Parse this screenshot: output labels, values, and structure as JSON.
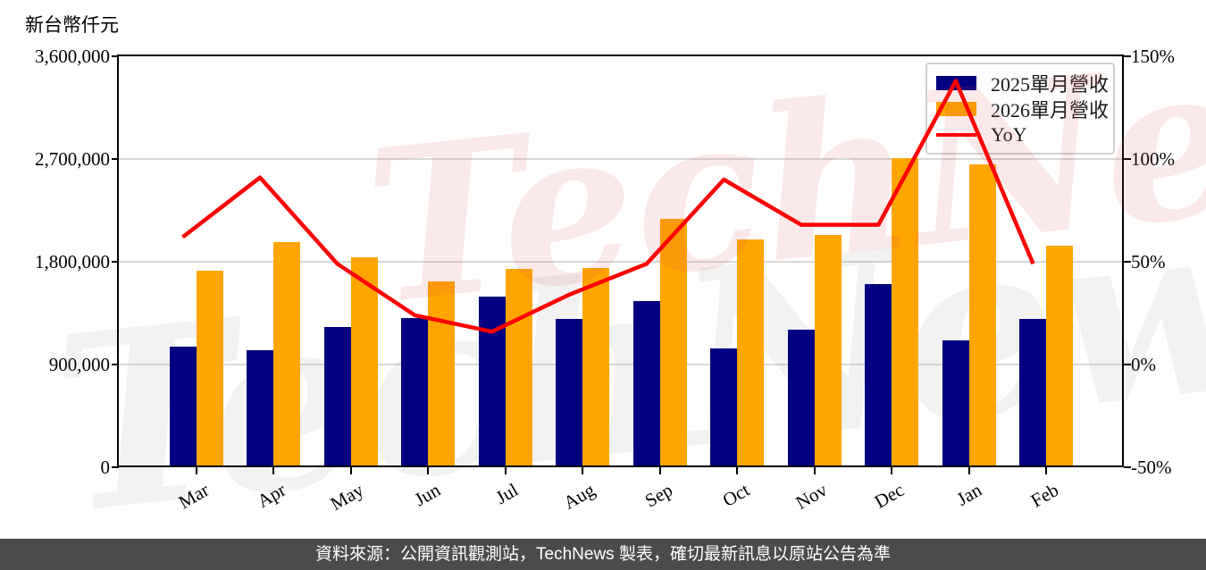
{
  "axis_title": "新台幣仟元",
  "watermark": {
    "text": "TechNews"
  },
  "legend": [
    {
      "label": "2025單月營收",
      "color": "#000080",
      "type": "box"
    },
    {
      "label": "2026單月營收",
      "color": "#FFA500",
      "type": "box"
    },
    {
      "label": "YoY",
      "color": "#FF0000",
      "type": "line"
    }
  ],
  "footer": {
    "text": "資料來源：公開資訊觀測站，TechNews 製表，確切最新訊息以原站公告為準"
  },
  "colors": {
    "bar_2025": "#000080",
    "bar_2026": "#FFA500",
    "yoy_line": "#FF0000",
    "gridline": "#d8d8d8",
    "axis": "#000000",
    "footer_bg": "#4b4b4b",
    "footer_text": "#ffffff",
    "watermark_pink": "rgba(225,75,75,0.13)",
    "watermark_gray": "rgba(125,125,125,0.10)"
  },
  "chart_data": {
    "type": "bar",
    "subtype": "grouped bars with line overlay (dual axis)",
    "categories": [
      "Mar",
      "Apr",
      "May",
      "Jun",
      "Jul",
      "Aug",
      "Sep",
      "Oct",
      "Nov",
      "Dec",
      "Jan",
      "Feb"
    ],
    "series": [
      {
        "name": "2025單月營收",
        "type": "bar",
        "axis": "left",
        "color": "#000080",
        "values": [
          1054000,
          1028000,
          1229000,
          1309000,
          1497000,
          1302000,
          1458000,
          1041000,
          1203000,
          1607000,
          1111000,
          1302000
        ]
      },
      {
        "name": "2026單月營收",
        "type": "bar",
        "axis": "left",
        "color": "#FFA500",
        "values": [
          1724000,
          1972000,
          1837000,
          1628000,
          1740000,
          1745000,
          2176000,
          1996000,
          2037000,
          2706000,
          2651000,
          1941000
        ]
      },
      {
        "name": "YoY",
        "type": "line",
        "axis": "right",
        "color": "#FF0000",
        "unit": "%",
        "values": [
          62,
          91,
          49,
          24,
          16,
          34,
          49,
          90,
          68,
          68,
          138,
          49
        ]
      }
    ],
    "left_axis": {
      "label": "新台幣仟元",
      "min": 0,
      "max": 3600000,
      "tick_values": [
        0,
        900000,
        1800000,
        2700000,
        3600000
      ],
      "tick_labels": [
        "0",
        "900,000",
        "1,800,000",
        "2,700,000",
        "3,600,000"
      ]
    },
    "right_axis": {
      "min": -50,
      "max": 150,
      "tick_values": [
        -50,
        0,
        50,
        100,
        150
      ],
      "tick_labels": [
        "-50%",
        "0%",
        "50%",
        "100%",
        "150%"
      ]
    },
    "grid": true,
    "legend_position": "top-right"
  }
}
